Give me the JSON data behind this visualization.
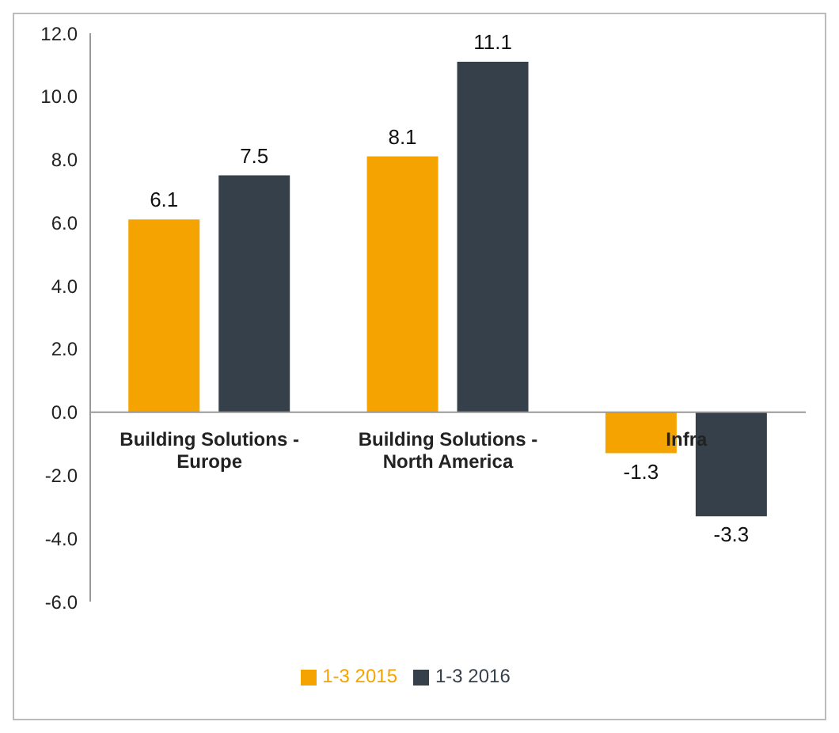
{
  "chart_data": {
    "type": "bar",
    "categories": [
      "Building Solutions - Europe",
      "Building Solutions - North America",
      "Infra"
    ],
    "series": [
      {
        "name": "1-3 2015",
        "color": "#f5a300",
        "values": [
          6.1,
          8.1,
          -1.3
        ]
      },
      {
        "name": "1-3 2016",
        "color": "#36404a",
        "values": [
          7.5,
          11.1,
          -3.3
        ]
      }
    ],
    "ylim": [
      -6,
      12
    ],
    "yticks": [
      {
        "value": -6,
        "label": "-6.0"
      },
      {
        "value": -4,
        "label": "-4.0"
      },
      {
        "value": -2,
        "label": "-2.0"
      },
      {
        "value": 0,
        "label": "0.0"
      },
      {
        "value": 2,
        "label": "2.0"
      },
      {
        "value": 4,
        "label": "4.0"
      },
      {
        "value": 6,
        "label": "6.0"
      },
      {
        "value": 8,
        "label": "8.0"
      },
      {
        "value": 10,
        "label": "10.0"
      },
      {
        "value": 12,
        "label": "12.0"
      }
    ],
    "data_labels": true,
    "grid": false,
    "legend": "bottom"
  }
}
